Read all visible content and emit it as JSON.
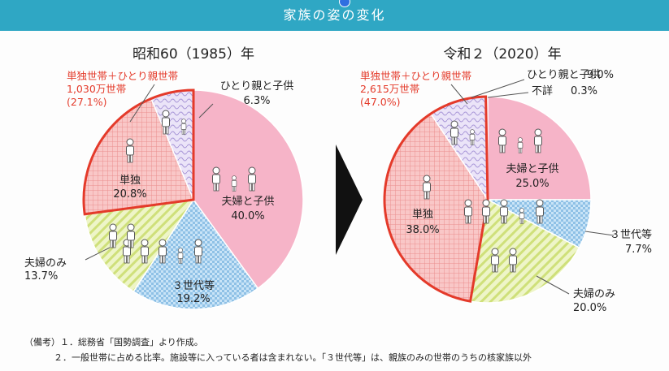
{
  "header": {
    "title": "家族の姿の変化"
  },
  "colors": {
    "header_bg": "#2fa7c4",
    "handle": "#2f6fe0",
    "highlight_border": "#e43a2a",
    "label_red": "#e43a2a"
  },
  "chart_data": [
    {
      "type": "pie",
      "title": "昭和60（1985）年",
      "slices": [
        {
          "key": "couple_children",
          "label": "夫婦と子供",
          "value": 40.0,
          "value_label": "40.0%",
          "color": "#f6b4c8",
          "pattern": "solid",
          "icons": "family"
        },
        {
          "key": "three_gen",
          "label": "３世代等",
          "value": 19.2,
          "value_label": "19.2%",
          "color": "#b9dbf2",
          "pattern": "check",
          "icons": "three_gen"
        },
        {
          "key": "couple_only",
          "label": "夫婦のみ",
          "value": 13.7,
          "value_label": "13.7%",
          "color": "#e1ec9d",
          "pattern": "diagonal",
          "icons": "couple"
        },
        {
          "key": "single",
          "label": "単独",
          "value": 20.8,
          "value_label": "20.8%",
          "color": "#f6b4b4",
          "pattern": "grid",
          "icons": "single"
        },
        {
          "key": "single_parent",
          "label": "ひとり親と子供",
          "value": 6.3,
          "value_label": "6.3%",
          "color": "#d8cdef",
          "pattern": "wave",
          "icons": "parent_child"
        }
      ],
      "highlight": {
        "label_line1": "単独世帯＋ひとり親世帯",
        "label_line2": "1,030万世帯",
        "label_line3": "(27.1%)"
      }
    },
    {
      "type": "pie",
      "title": "令和２（2020）年",
      "slices": [
        {
          "key": "couple_children",
          "label": "夫婦と子供",
          "value": 25.0,
          "value_label": "25.0%",
          "color": "#f6b4c8",
          "pattern": "solid",
          "icons": "family"
        },
        {
          "key": "three_gen",
          "label": "３世代等",
          "value": 7.7,
          "value_label": "7.7%",
          "color": "#b9dbf2",
          "pattern": "check",
          "icons": "three_gen"
        },
        {
          "key": "couple_only",
          "label": "夫婦のみ",
          "value": 20.0,
          "value_label": "20.0%",
          "color": "#e1ec9d",
          "pattern": "diagonal",
          "icons": "couple"
        },
        {
          "key": "single",
          "label": "単独",
          "value": 38.0,
          "value_label": "38.0%",
          "color": "#f6b4b4",
          "pattern": "grid",
          "icons": "single"
        },
        {
          "key": "single_parent",
          "label": "ひとり親と子供",
          "value": 9.0,
          "value_label": "9.0%",
          "color": "#d8cdef",
          "pattern": "wave",
          "icons": "parent_child"
        },
        {
          "key": "unknown",
          "label": "不詳",
          "value": 0.3,
          "value_label": "0.3%",
          "color": "#ffffff",
          "pattern": "solid",
          "icons": ""
        }
      ],
      "highlight": {
        "label_line1": "単独世帯＋ひとり親世帯",
        "label_line2": "2,615万世帯",
        "label_line3": "(47.0%)"
      }
    }
  ],
  "notes": {
    "line1": "（備考）１．総務省「国勢調査」より作成。",
    "line2": "２．一般世帯に占める比率。施設等に入っている者は含まれない。「３世代等」は、親族のみの世帯のうちの核家族以外"
  }
}
